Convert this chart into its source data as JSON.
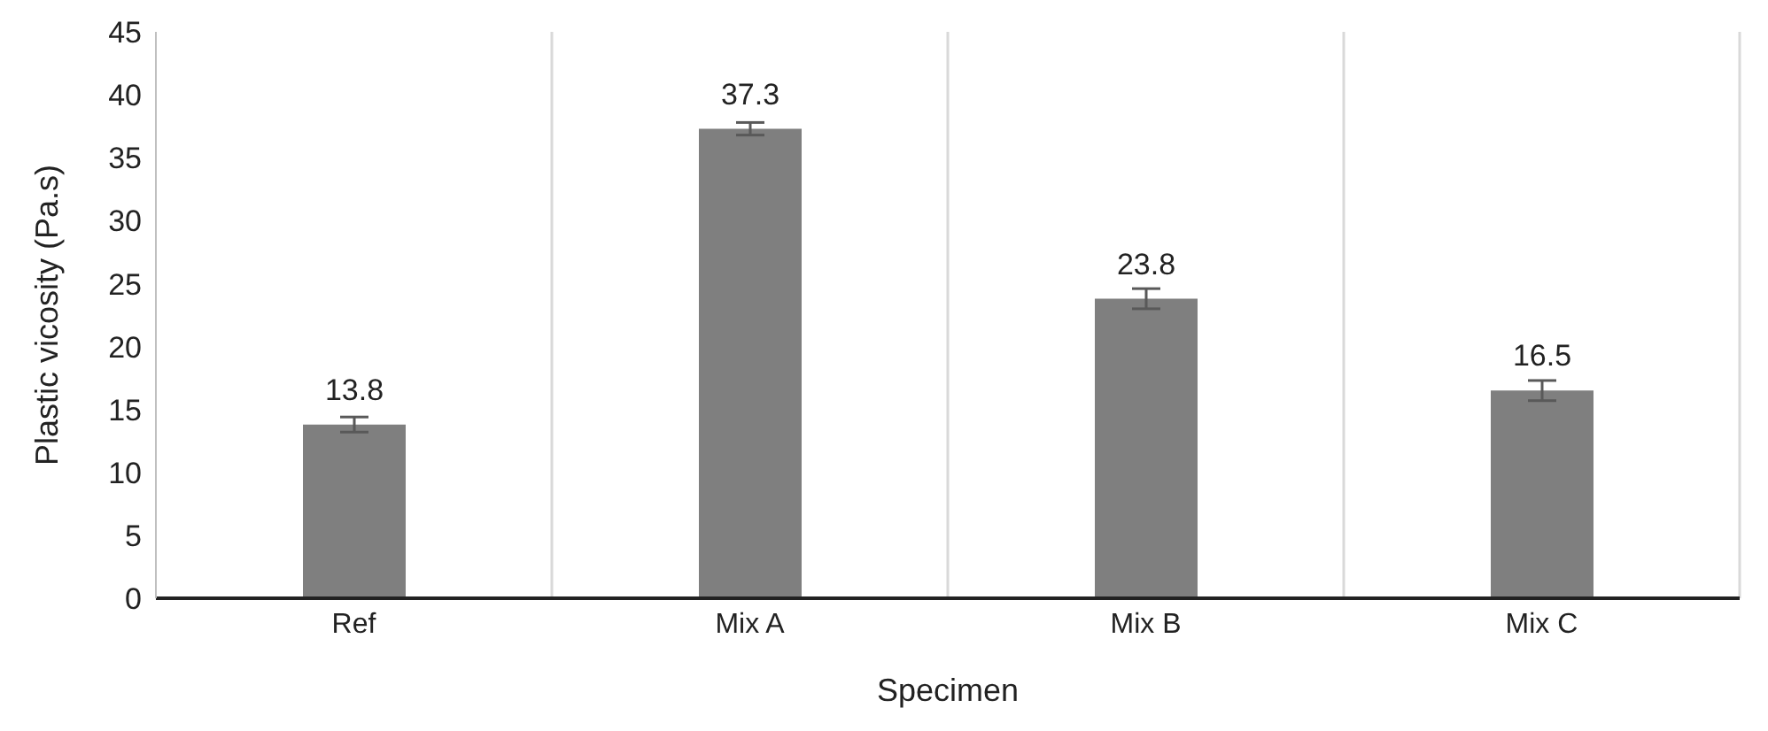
{
  "chart_data": {
    "type": "bar",
    "xlabel": "Specimen",
    "ylabel": "Plastic vicosity (Pa.s)",
    "categories": [
      "Ref",
      "Mix A",
      "Mix B",
      "Mix C"
    ],
    "values": [
      13.8,
      37.3,
      23.8,
      16.5
    ],
    "errors": [
      0.6,
      0.5,
      0.8,
      0.8
    ],
    "color": "#7f7f7f",
    "ylim": [
      0,
      45
    ],
    "yticks": [
      0,
      5,
      10,
      15,
      20,
      25,
      30,
      35,
      40,
      45
    ],
    "grid": "x",
    "data_labels": true
  }
}
